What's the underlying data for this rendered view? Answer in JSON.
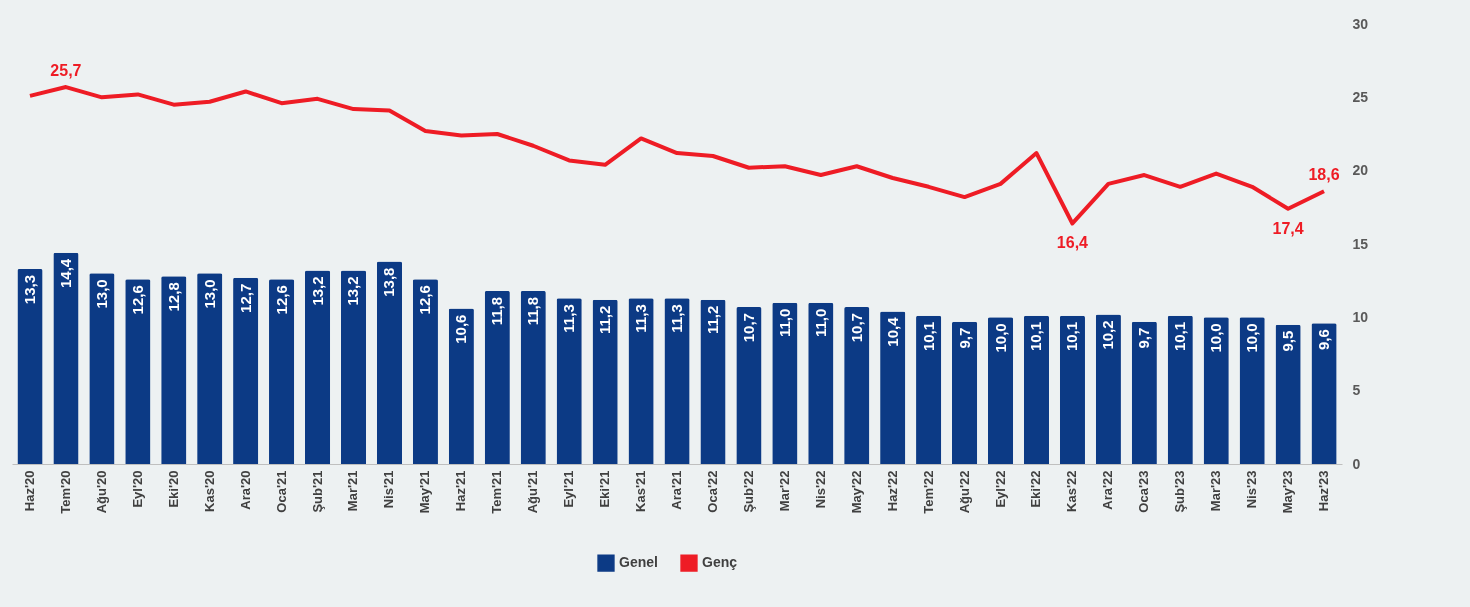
{
  "chart_data": {
    "type": "bar",
    "categories": [
      "Haz'20",
      "Tem'20",
      "Ağu'20",
      "Eyl'20",
      "Eki'20",
      "Kas'20",
      "Ara'20",
      "Oca'21",
      "Şub'21",
      "Mar'21",
      "Nis'21",
      "May'21",
      "Haz'21",
      "Tem'21",
      "Ağu'21",
      "Eyl'21",
      "Eki'21",
      "Kas'21",
      "Ara'21",
      "Oca'22",
      "Şub'22",
      "Mar'22",
      "Nis'22",
      "May'22",
      "Haz'22",
      "Tem'22",
      "Ağu'22",
      "Eyl'22",
      "Eki'22",
      "Kas'22",
      "Ara'22",
      "Oca'23",
      "Şub'23",
      "Mar'23",
      "Nis'23",
      "May'23",
      "Haz'23"
    ],
    "series": [
      {
        "name": "Genel",
        "color": "#0c3a85",
        "values": [
          13.3,
          14.4,
          13.0,
          12.6,
          12.8,
          13.0,
          12.7,
          12.6,
          13.2,
          13.2,
          13.8,
          12.6,
          10.6,
          11.8,
          11.8,
          11.3,
          11.2,
          11.3,
          11.3,
          11.2,
          10.7,
          11.0,
          11.0,
          10.7,
          10.4,
          10.1,
          9.7,
          10.0,
          10.1,
          10.1,
          10.2,
          9.7,
          10.1,
          10.0,
          10.0,
          9.5,
          9.6
        ],
        "value_labels": [
          "13,3",
          "14,4",
          "13,0",
          "12,6",
          "12,8",
          "13,0",
          "12,7",
          "12,6",
          "13,2",
          "13,2",
          "13,8",
          "12,6",
          "10,6",
          "11,8",
          "11,8",
          "11,3",
          "11,2",
          "11,3",
          "11,3",
          "11,2",
          "10,7",
          "11,0",
          "11,0",
          "10,7",
          "10,4",
          "10,1",
          "9,7",
          "10,0",
          "10,1",
          "10,1",
          "10,2",
          "9,7",
          "10,1",
          "10,0",
          "10,0",
          "9,5",
          "9,6"
        ]
      },
      {
        "name": "Genç",
        "type": "line",
        "color": "#ee1c25",
        "values": [
          25.1,
          25.7,
          25.0,
          25.2,
          24.5,
          24.7,
          25.4,
          24.6,
          24.9,
          24.2,
          24.1,
          22.7,
          22.4,
          22.5,
          21.7,
          20.7,
          20.4,
          22.2,
          21.2,
          21.0,
          20.2,
          20.3,
          19.7,
          20.3,
          19.5,
          18.9,
          18.2,
          19.1,
          21.2,
          16.4,
          19.1,
          19.7,
          18.9,
          19.8,
          18.9,
          17.4,
          18.6
        ],
        "value_labels": [
          null,
          "25,7",
          null,
          null,
          null,
          null,
          null,
          null,
          null,
          null,
          null,
          null,
          null,
          null,
          null,
          null,
          null,
          null,
          null,
          null,
          null,
          null,
          null,
          null,
          null,
          null,
          null,
          null,
          null,
          "16,4",
          null,
          null,
          null,
          null,
          null,
          "17,4",
          "18,6"
        ]
      }
    ],
    "ylim": [
      0,
      30
    ],
    "yticks": [
      0,
      5,
      10,
      15,
      20,
      25,
      30
    ],
    "legend": "bottom",
    "grid": false
  }
}
